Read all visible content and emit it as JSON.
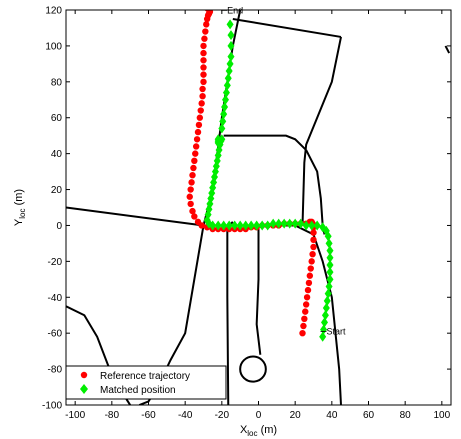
{
  "chart_data": {
    "type": "scatter",
    "title": "",
    "xlabel": "X",
    "xlabel_sub": "loc",
    "xlabel_unit": " (m)",
    "ylabel": "Y",
    "ylabel_sub": "loc",
    "ylabel_unit": " (m)",
    "xlim": [
      -105,
      105
    ],
    "ylim": [
      -100,
      120
    ],
    "xticks": [
      -100,
      -80,
      -60,
      -40,
      -20,
      0,
      20,
      40,
      60,
      80,
      100
    ],
    "yticks": [
      -100,
      -80,
      -60,
      -40,
      -20,
      0,
      20,
      40,
      60,
      80,
      100,
      120
    ],
    "grid": false,
    "legend_position": "bottom-left",
    "annotations": [
      {
        "text": "End",
        "x": -16,
        "y": 117
      },
      {
        "text": "Start",
        "x": 36,
        "y": -59
      }
    ],
    "series": [
      {
        "name": "Reference trajectory",
        "marker": "circle",
        "color": "#ff0000",
        "x": [
          24,
          24.5,
          25,
          25.5,
          26,
          26.5,
          27,
          27.5,
          28,
          28.5,
          29,
          29.5,
          30,
          30,
          30,
          30,
          29.5,
          29,
          28,
          26,
          23,
          20,
          17,
          14,
          11,
          8,
          5,
          2,
          -1,
          -4,
          -7,
          -10,
          -13,
          -16,
          -19,
          -22,
          -25,
          -28,
          -31,
          -33,
          -35,
          -36,
          -37,
          -37.5,
          -37,
          -36.5,
          -36,
          -35.5,
          -35,
          -34.5,
          -34,
          -33.5,
          -33,
          -32.5,
          -32,
          -31.5,
          -31,
          -30.5,
          -30.5,
          -30,
          -30,
          -30,
          -30,
          -30,
          -30,
          -29.5,
          -29,
          -28.5,
          -28,
          -27.5,
          -27,
          -26.5,
          -27,
          -28,
          -29
        ],
        "y": [
          -60,
          -56,
          -52,
          -48,
          -44,
          -40,
          -36,
          -32,
          -28,
          -24,
          -20,
          -16,
          -12,
          -8,
          -4,
          -1,
          1,
          2,
          2,
          1,
          1,
          1,
          1,
          1,
          0,
          0,
          0,
          0,
          -1,
          -1,
          -2,
          -2,
          -2,
          -2,
          -2,
          -2,
          -2,
          -1,
          0,
          2,
          5,
          8,
          12,
          16,
          20,
          24,
          28,
          32,
          36,
          40,
          44,
          48,
          52,
          56,
          60,
          64,
          68,
          72,
          76,
          80,
          84,
          88,
          92,
          96,
          100,
          104,
          108,
          112,
          115,
          117,
          118,
          119,
          120,
          121,
          122
        ]
      },
      {
        "name": "Matched position",
        "marker": "diamond",
        "color": "#00ee00",
        "x": [
          35,
          35.5,
          36,
          36.5,
          37,
          37.5,
          38,
          38.5,
          39,
          39,
          39,
          39,
          39,
          38.5,
          38,
          37,
          35,
          32,
          29,
          26,
          23,
          20,
          17,
          14,
          11,
          8,
          5,
          2,
          -1,
          -4,
          -7,
          -10,
          -13,
          -16,
          -19,
          -22,
          -25,
          -27,
          -28,
          -27.5,
          -27,
          -26.5,
          -26,
          -25.5,
          -25,
          -24.5,
          -24,
          -23.5,
          -23,
          -22.5,
          -22,
          -21.5,
          -21,
          -20.5,
          -20,
          -22,
          -22,
          -22,
          -20,
          -19.5,
          -19,
          -18.5,
          -18,
          -17.5,
          -17,
          -16.5,
          -16,
          -15.5,
          -15,
          -15,
          -15,
          -15.5
        ],
        "y": [
          -62,
          -58,
          -54,
          -50,
          -46,
          -42,
          -38,
          -34,
          -30,
          -26,
          -22,
          -18,
          -14,
          -10,
          -6,
          -3,
          -1,
          0,
          0,
          0,
          1,
          1,
          1,
          1,
          1,
          1,
          0,
          0,
          0,
          0,
          0,
          0,
          0,
          0,
          0,
          0,
          0,
          1,
          3,
          6,
          9,
          12,
          15,
          18,
          21,
          24,
          27,
          30,
          33,
          36,
          39,
          42,
          45,
          47,
          48,
          46,
          47,
          48,
          54,
          58,
          62,
          66,
          70,
          74,
          78,
          82,
          86,
          90,
          94,
          100,
          106,
          112
        ]
      }
    ],
    "map_lines": [
      {
        "x": [
          -105,
          -30,
          20,
          30,
          35,
          40,
          42,
          44,
          45
        ],
        "y": [
          10,
          0,
          0,
          -5,
          -20,
          -40,
          -60,
          -80,
          -100
        ]
      },
      {
        "x": [
          -30,
          -25,
          -20,
          -14,
          -10
        ],
        "y": [
          0,
          20,
          60,
          100,
          120
        ]
      },
      {
        "x": [
          -14,
          45
        ],
        "y": [
          115,
          105
        ]
      },
      {
        "x": [
          45,
          40,
          32,
          26,
          25,
          24
        ],
        "y": [
          105,
          80,
          60,
          45,
          35,
          0
        ]
      },
      {
        "x": [
          -19,
          0,
          15,
          20,
          26
        ],
        "y": [
          50,
          50,
          50,
          48,
          42
        ]
      },
      {
        "x": [
          26,
          32,
          34,
          35,
          36
        ],
        "y": [
          42,
          30,
          15,
          0,
          -5
        ]
      },
      {
        "x": [
          -30,
          -35,
          -40,
          -48,
          -55,
          -60,
          -65
        ],
        "y": [
          0,
          -30,
          -60,
          -75,
          -90,
          -98,
          -100
        ]
      },
      {
        "x": [
          -105,
          -95,
          -88,
          -82,
          -75,
          -70
        ],
        "y": [
          -45,
          -50,
          -62,
          -78,
          -92,
          -100
        ]
      },
      {
        "x": [
          -17,
          -17,
          -16.5
        ],
        "y": [
          0,
          -40,
          -100
        ]
      },
      {
        "x": [
          0,
          0,
          -1,
          1
        ],
        "y": [
          0,
          -30,
          -55,
          -72
        ]
      },
      {
        "x": [
          -14,
          -16
        ],
        "y": [
          2,
          0
        ]
      },
      {
        "x": [
          102,
          104
        ],
        "y": [
          100,
          96
        ]
      }
    ],
    "circle_feature": {
      "cx": -3,
      "cy": -80,
      "r": 7
    }
  }
}
